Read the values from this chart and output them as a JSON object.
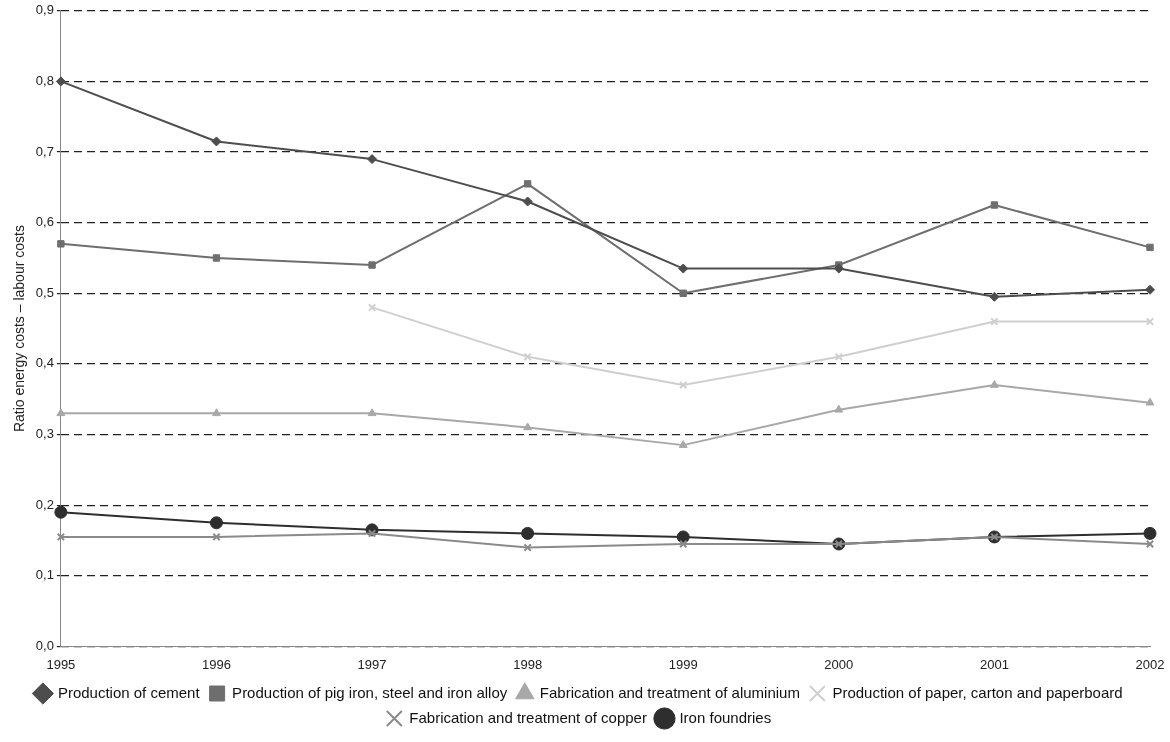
{
  "chart_data": {
    "type": "line",
    "ylabel": "Ratio energy costs – labour costs",
    "categories": [
      "1995",
      "1996",
      "1997",
      "1998",
      "1999",
      "2000",
      "2001",
      "2002"
    ],
    "series": [
      {
        "name": "Production of cement",
        "color": "#4d4d4d",
        "marker": "diamond",
        "values": [
          0.8,
          0.715,
          0.69,
          0.63,
          0.535,
          0.535,
          0.495,
          0.505
        ]
      },
      {
        "name": "Production of pig iron, steel and iron alloy",
        "color": "#6e6e6e",
        "marker": "square",
        "values": [
          0.57,
          0.55,
          0.54,
          0.655,
          0.5,
          0.54,
          0.625,
          0.565
        ]
      },
      {
        "name": "Fabrication and treatment of aluminium",
        "color": "#a8a8a8",
        "marker": "triangle",
        "values": [
          0.33,
          0.33,
          0.33,
          0.31,
          0.285,
          0.335,
          0.37,
          0.345
        ]
      },
      {
        "name": "Production of paper, carton and paperboard",
        "color": "#cfcfcf",
        "marker": "cross",
        "values": [
          null,
          null,
          0.48,
          0.41,
          0.37,
          0.41,
          0.46,
          0.46
        ]
      },
      {
        "name": "Fabrication and treatment of copper",
        "color": "#8a8a8a",
        "marker": "cross",
        "values": [
          0.155,
          0.155,
          0.16,
          0.14,
          0.145,
          0.145,
          0.155,
          0.145
        ]
      },
      {
        "name": "Iron foundries",
        "color": "#2e2e2e",
        "marker": "circle",
        "values": [
          0.19,
          0.175,
          0.165,
          0.16,
          0.155,
          0.145,
          0.155,
          0.16
        ]
      }
    ],
    "ylim": [
      0,
      0.9
    ],
    "yticks": [
      {
        "value": 0,
        "label": "0,0"
      },
      {
        "value": 0.1,
        "label": "0,1"
      },
      {
        "value": 0.2,
        "label": "0,2"
      },
      {
        "value": 0.3,
        "label": "0,3"
      },
      {
        "value": 0.4,
        "label": "0,4"
      },
      {
        "value": 0.5,
        "label": "0,5"
      },
      {
        "value": 0.6,
        "label": "0,6"
      },
      {
        "value": 0.7,
        "label": "0,7"
      },
      {
        "value": 0.8,
        "label": "0,8"
      },
      {
        "value": 0.9,
        "label": "0,9"
      }
    ],
    "grid": "y",
    "legend": "bottom"
  }
}
